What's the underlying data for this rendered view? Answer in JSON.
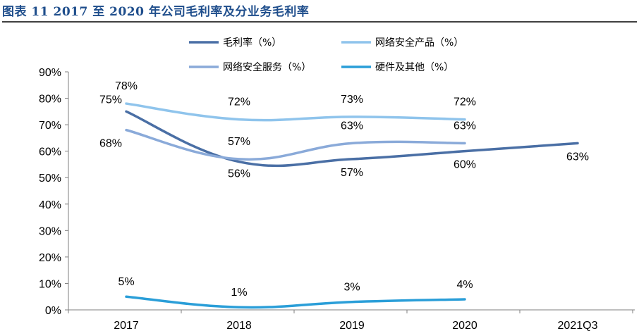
{
  "figure": {
    "title": "图表 11 2017 至 2020 年公司毛利率及分业务毛利率"
  },
  "colors": {
    "gross_margin": "#4a6fa5",
    "security_products": "#8fc4ec",
    "security_services": "#8aaad9",
    "hardware_other": "#2a9ed8",
    "axis": "#7f7f7f"
  },
  "chart_data": {
    "type": "line",
    "title": "",
    "xlabel": "",
    "ylabel": "",
    "categories": [
      "2017",
      "2018",
      "2019",
      "2020",
      "2021Q3"
    ],
    "ylim": [
      0,
      90
    ],
    "y_ticks": [
      "0%",
      "10%",
      "20%",
      "30%",
      "40%",
      "50%",
      "60%",
      "70%",
      "80%",
      "90%"
    ],
    "grid": false,
    "legend_position": "top",
    "series": [
      {
        "name": "毛利率（%）",
        "color": "#4a6fa5",
        "values": [
          75,
          56,
          57,
          60,
          63
        ],
        "labels": [
          "75%",
          "56%",
          "57%",
          "60%",
          "63%"
        ]
      },
      {
        "name": "网络安全产品（%）",
        "color": "#8fc4ec",
        "values": [
          78,
          72,
          73,
          72,
          null
        ],
        "labels": [
          "78%",
          "72%",
          "73%",
          "72%",
          ""
        ]
      },
      {
        "name": "网络安全服务（%）",
        "color": "#8aaad9",
        "values": [
          68,
          57,
          63,
          63,
          null
        ],
        "labels": [
          "68%",
          "57%",
          "63%",
          "63%",
          ""
        ]
      },
      {
        "name": "硬件及其他（%）",
        "color": "#2a9ed8",
        "values": [
          5,
          1,
          3,
          4,
          null
        ],
        "labels": [
          "5%",
          "1%",
          "3%",
          "4%",
          ""
        ]
      }
    ]
  }
}
